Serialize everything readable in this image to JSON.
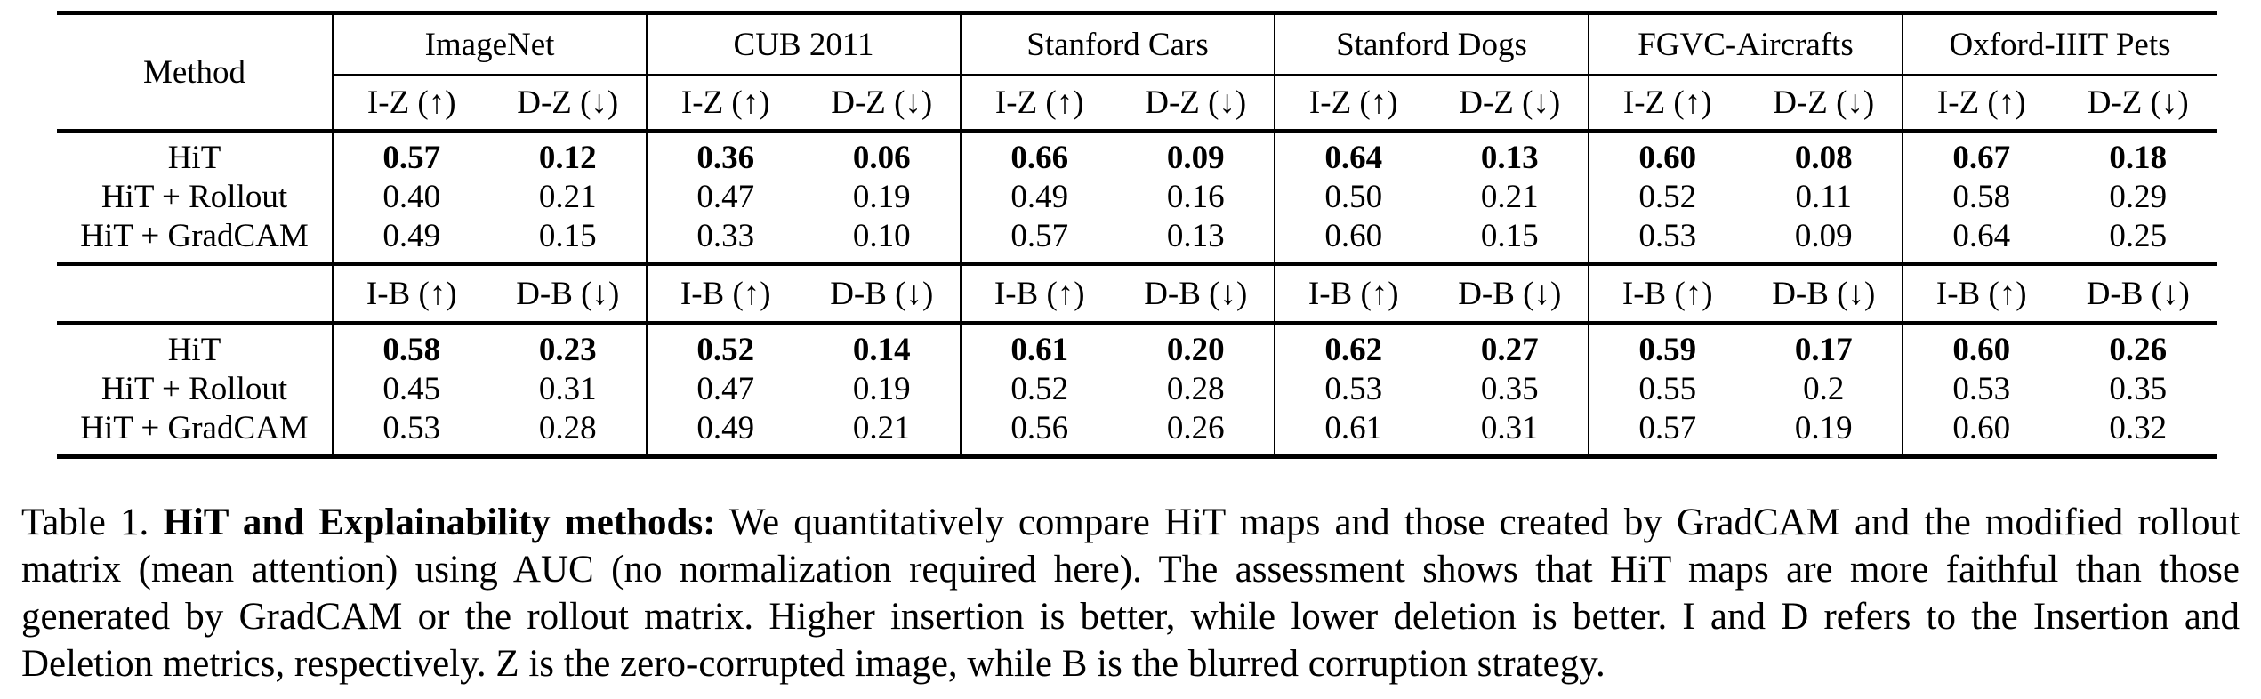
{
  "table": {
    "method_header": "Method",
    "datasets": [
      "ImageNet",
      "CUB 2011",
      "Stanford Cars",
      "Stanford Dogs",
      "FGVC-Aircrafts",
      "Oxford-IIIT Pets"
    ],
    "sections": [
      {
        "corruption": "zero",
        "metric_headers": [
          "I-Z (↑)",
          "D-Z (↓)"
        ],
        "rows": [
          {
            "method": "HiT",
            "bold": true,
            "values": [
              "0.57",
              "0.12",
              "0.36",
              "0.06",
              "0.66",
              "0.09",
              "0.64",
              "0.13",
              "0.60",
              "0.08",
              "0.67",
              "0.18"
            ]
          },
          {
            "method": "HiT + Rollout",
            "bold": false,
            "values": [
              "0.40",
              "0.21",
              "0.47",
              "0.19",
              "0.49",
              "0.16",
              "0.50",
              "0.21",
              "0.52",
              "0.11",
              "0.58",
              "0.29"
            ]
          },
          {
            "method": "HiT + GradCAM",
            "bold": false,
            "values": [
              "0.49",
              "0.15",
              "0.33",
              "0.10",
              "0.57",
              "0.13",
              "0.60",
              "0.15",
              "0.53",
              "0.09",
              "0.64",
              "0.25"
            ]
          }
        ]
      },
      {
        "corruption": "blur",
        "metric_headers": [
          "I-B (↑)",
          "D-B (↓)"
        ],
        "rows": [
          {
            "method": "HiT",
            "bold": true,
            "values": [
              "0.58",
              "0.23",
              "0.52",
              "0.14",
              "0.61",
              "0.20",
              "0.62",
              "0.27",
              "0.59",
              "0.17",
              "0.60",
              "0.26"
            ]
          },
          {
            "method": "HiT + Rollout",
            "bold": false,
            "values": [
              "0.45",
              "0.31",
              "0.47",
              "0.19",
              "0.52",
              "0.28",
              "0.53",
              "0.35",
              "0.55",
              "0.2",
              "0.53",
              "0.35"
            ]
          },
          {
            "method": "HiT + GradCAM",
            "bold": false,
            "values": [
              "0.53",
              "0.28",
              "0.49",
              "0.21",
              "0.56",
              "0.26",
              "0.61",
              "0.31",
              "0.57",
              "0.19",
              "0.60",
              "0.32"
            ]
          }
        ]
      }
    ]
  },
  "caption": {
    "label": "Table 1.",
    "bold": "HiT and Explainability methods:",
    "text": "We quantitatively compare HiT maps and those created by GradCAM and the modified rollout matrix (mean attention) using AUC (no normalization required here). The assessment shows that HiT maps are more faithful than those generated by GradCAM or the rollout matrix. Higher insertion is better, while lower deletion is better. I and D refers to the Insertion and Deletion metrics, respectively. Z is the zero-corrupted image, while B is the blurred corruption strategy."
  }
}
